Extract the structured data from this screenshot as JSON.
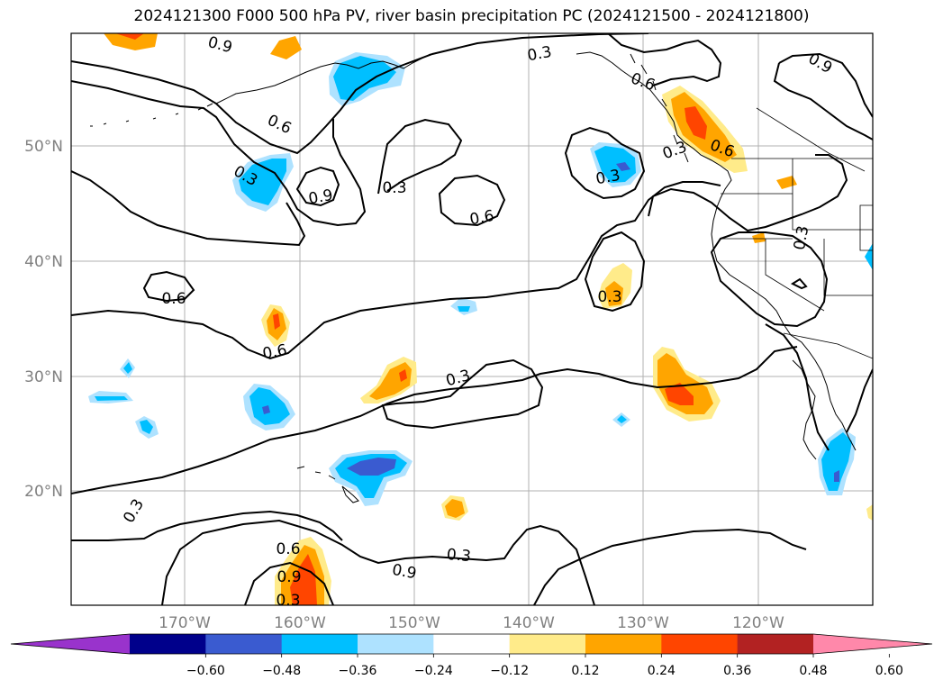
{
  "title": "2024121300 F000 500 hPa PV, river basin precipitation PC (2024121500 - 2024121800)",
  "map": {
    "lat_labels": [
      "50°N",
      "40°N",
      "30°N",
      "20°N"
    ],
    "lon_labels": [
      "170°W",
      "160°W",
      "150°W",
      "140°W",
      "130°W",
      "120°W"
    ],
    "contour_labels": [
      {
        "text": "0.9"
      },
      {
        "text": "0.3"
      },
      {
        "text": "0.6"
      },
      {
        "text": "0.6"
      },
      {
        "text": "0.3"
      },
      {
        "text": "0.9"
      },
      {
        "text": "0.3"
      },
      {
        "text": "0.6"
      },
      {
        "text": "0.6"
      },
      {
        "text": "0.3"
      },
      {
        "text": "0.3"
      },
      {
        "text": "0.3"
      },
      {
        "text": "0.6"
      },
      {
        "text": "0.3"
      },
      {
        "text": "0.9"
      },
      {
        "text": "0.6"
      },
      {
        "text": "0.3"
      },
      {
        "text": "0.3"
      },
      {
        "text": "0.9"
      },
      {
        "text": "0.3"
      },
      {
        "text": "0.6"
      },
      {
        "text": "0.9"
      },
      {
        "text": "0.3"
      }
    ]
  },
  "colorbar": {
    "ticks": [
      "−0.60",
      "−0.48",
      "−0.36",
      "−0.24",
      "−0.12",
      "0.12",
      "0.24",
      "0.36",
      "0.48",
      "0.60"
    ],
    "colors": [
      "#9933cc",
      "#00008b",
      "#3a5bd0",
      "#00bfff",
      "#aee2ff",
      "#ffffff",
      "#ffeb8a",
      "#ffa500",
      "#ff4500",
      "#b22222",
      "#ff88aa"
    ]
  },
  "colors": {
    "pos_light": "#ffeb8a",
    "pos_mid": "#ffa500",
    "pos_high": "#ff4500",
    "neg_light": "#aee2ff",
    "neg_mid": "#00bfff",
    "neg_high": "#3a5bd0",
    "grid": "#b0b0b0",
    "tick_label": "#808080"
  }
}
